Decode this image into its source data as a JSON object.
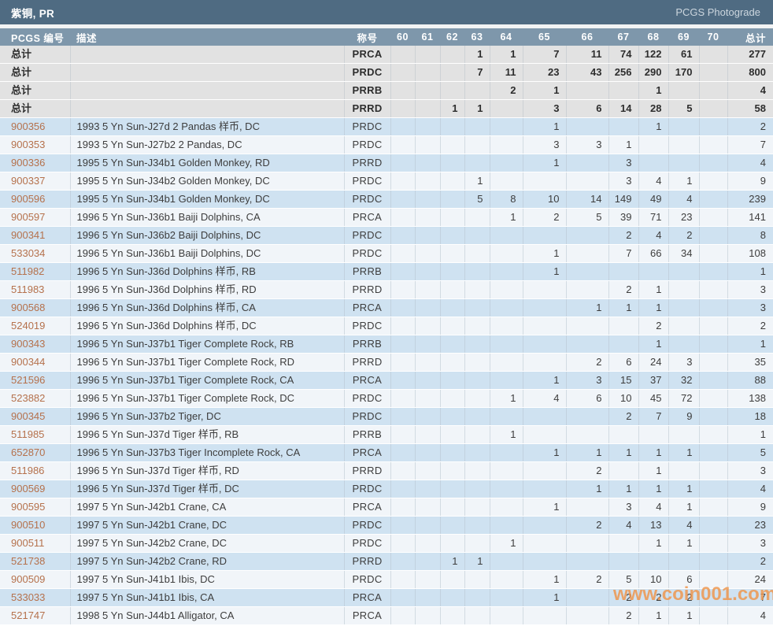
{
  "title_bar": {
    "title": "紫铜, PR",
    "right_label": "PCGS Photograde"
  },
  "columns": [
    "PCGS 编号",
    "描述",
    "称号",
    "60",
    "61",
    "62",
    "63",
    "64",
    "65",
    "66",
    "67",
    "68",
    "69",
    "70",
    "总计"
  ],
  "summary_label": "总计",
  "summary_rows": [
    {
      "designation": "PRCA",
      "grades": [
        "",
        "",
        "",
        "1",
        "1",
        "7",
        "11",
        "74",
        "122",
        "61",
        ""
      ],
      "total": "277"
    },
    {
      "designation": "PRDC",
      "grades": [
        "",
        "",
        "",
        "7",
        "11",
        "23",
        "43",
        "256",
        "290",
        "170",
        ""
      ],
      "total": "800"
    },
    {
      "designation": "PRRB",
      "grades": [
        "",
        "",
        "",
        "",
        "2",
        "1",
        "",
        "",
        "1",
        "",
        ""
      ],
      "total": "4"
    },
    {
      "designation": "PRRD",
      "grades": [
        "",
        "",
        "1",
        "1",
        "",
        "3",
        "6",
        "14",
        "28",
        "5",
        ""
      ],
      "total": "58"
    }
  ],
  "coin_rows": [
    {
      "number": "900356",
      "description": "1993 5 Yn Sun-J27d 2 Pandas 样币, DC",
      "designation": "PRDC",
      "grades": [
        "",
        "",
        "",
        "",
        "",
        "1",
        "",
        "",
        "1",
        "",
        ""
      ],
      "total": "2"
    },
    {
      "number": "900353",
      "description": "1993 5 Yn Sun-J27b2 2 Pandas, DC",
      "designation": "PRDC",
      "grades": [
        "",
        "",
        "",
        "",
        "",
        "3",
        "3",
        "1",
        "",
        "",
        ""
      ],
      "total": "7"
    },
    {
      "number": "900336",
      "description": "1995 5 Yn Sun-J34b1 Golden Monkey, RD",
      "designation": "PRRD",
      "grades": [
        "",
        "",
        "",
        "",
        "",
        "1",
        "",
        "3",
        "",
        "",
        ""
      ],
      "total": "4"
    },
    {
      "number": "900337",
      "description": "1995 5 Yn Sun-J34b2 Golden Monkey, DC",
      "designation": "PRDC",
      "grades": [
        "",
        "",
        "",
        "1",
        "",
        "",
        "",
        "3",
        "4",
        "1",
        ""
      ],
      "total": "9"
    },
    {
      "number": "900596",
      "description": "1995 5 Yn Sun-J34b1 Golden Monkey, DC",
      "designation": "PRDC",
      "grades": [
        "",
        "",
        "",
        "5",
        "8",
        "10",
        "14",
        "149",
        "49",
        "4",
        ""
      ],
      "total": "239"
    },
    {
      "number": "900597",
      "description": "1996 5 Yn Sun-J36b1 Baiji Dolphins, CA",
      "designation": "PRCA",
      "grades": [
        "",
        "",
        "",
        "",
        "1",
        "2",
        "5",
        "39",
        "71",
        "23",
        ""
      ],
      "total": "141"
    },
    {
      "number": "900341",
      "description": "1996 5 Yn Sun-J36b2 Baiji Dolphins, DC",
      "designation": "PRDC",
      "grades": [
        "",
        "",
        "",
        "",
        "",
        "",
        "",
        "2",
        "4",
        "2",
        ""
      ],
      "total": "8"
    },
    {
      "number": "533034",
      "description": "1996 5 Yn Sun-J36b1 Baiji Dolphins, DC",
      "designation": "PRDC",
      "grades": [
        "",
        "",
        "",
        "",
        "",
        "1",
        "",
        "7",
        "66",
        "34",
        ""
      ],
      "total": "108"
    },
    {
      "number": "511982",
      "description": "1996 5 Yn Sun-J36d Dolphins 样币, RB",
      "designation": "PRRB",
      "grades": [
        "",
        "",
        "",
        "",
        "",
        "1",
        "",
        "",
        "",
        "",
        ""
      ],
      "total": "1"
    },
    {
      "number": "511983",
      "description": "1996 5 Yn Sun-J36d Dolphins 样币, RD",
      "designation": "PRRD",
      "grades": [
        "",
        "",
        "",
        "",
        "",
        "",
        "",
        "2",
        "1",
        "",
        ""
      ],
      "total": "3"
    },
    {
      "number": "900568",
      "description": "1996 5 Yn Sun-J36d Dolphins 样币, CA",
      "designation": "PRCA",
      "grades": [
        "",
        "",
        "",
        "",
        "",
        "",
        "1",
        "1",
        "1",
        "",
        ""
      ],
      "total": "3"
    },
    {
      "number": "524019",
      "description": "1996 5 Yn Sun-J36d Dolphins 样币, DC",
      "designation": "PRDC",
      "grades": [
        "",
        "",
        "",
        "",
        "",
        "",
        "",
        "",
        "2",
        "",
        ""
      ],
      "total": "2"
    },
    {
      "number": "900343",
      "description": "1996 5 Yn Sun-J37b1 Tiger Complete Rock, RB",
      "designation": "PRRB",
      "grades": [
        "",
        "",
        "",
        "",
        "",
        "",
        "",
        "",
        "1",
        "",
        ""
      ],
      "total": "1"
    },
    {
      "number": "900344",
      "description": "1996 5 Yn Sun-J37b1 Tiger Complete Rock, RD",
      "designation": "PRRD",
      "grades": [
        "",
        "",
        "",
        "",
        "",
        "",
        "2",
        "6",
        "24",
        "3",
        ""
      ],
      "total": "35"
    },
    {
      "number": "521596",
      "description": "1996 5 Yn Sun-J37b1 Tiger Complete Rock, CA",
      "designation": "PRCA",
      "grades": [
        "",
        "",
        "",
        "",
        "",
        "1",
        "3",
        "15",
        "37",
        "32",
        ""
      ],
      "total": "88"
    },
    {
      "number": "523882",
      "description": "1996 5 Yn Sun-J37b1 Tiger Complete Rock, DC",
      "designation": "PRDC",
      "grades": [
        "",
        "",
        "",
        "",
        "1",
        "4",
        "6",
        "10",
        "45",
        "72",
        ""
      ],
      "total": "138"
    },
    {
      "number": "900345",
      "description": "1996 5 Yn Sun-J37b2 Tiger, DC",
      "designation": "PRDC",
      "grades": [
        "",
        "",
        "",
        "",
        "",
        "",
        "",
        "2",
        "7",
        "9",
        ""
      ],
      "total": "18"
    },
    {
      "number": "511985",
      "description": "1996 5 Yn Sun-J37d Tiger 样币, RB",
      "designation": "PRRB",
      "grades": [
        "",
        "",
        "",
        "",
        "1",
        "",
        "",
        "",
        "",
        "",
        ""
      ],
      "total": "1"
    },
    {
      "number": "652870",
      "description": "1996 5 Yn Sun-J37b3 Tiger Incomplete Rock, CA",
      "designation": "PRCA",
      "grades": [
        "",
        "",
        "",
        "",
        "",
        "1",
        "1",
        "1",
        "1",
        "1",
        ""
      ],
      "total": "5"
    },
    {
      "number": "511986",
      "description": "1996 5 Yn Sun-J37d Tiger 样币, RD",
      "designation": "PRRD",
      "grades": [
        "",
        "",
        "",
        "",
        "",
        "",
        "2",
        "",
        "1",
        "",
        ""
      ],
      "total": "3"
    },
    {
      "number": "900569",
      "description": "1996 5 Yn Sun-J37d Tiger 样币, DC",
      "designation": "PRDC",
      "grades": [
        "",
        "",
        "",
        "",
        "",
        "",
        "1",
        "1",
        "1",
        "1",
        ""
      ],
      "total": "4"
    },
    {
      "number": "900595",
      "description": "1997 5 Yn Sun-J42b1 Crane, CA",
      "designation": "PRCA",
      "grades": [
        "",
        "",
        "",
        "",
        "",
        "1",
        "",
        "3",
        "4",
        "1",
        ""
      ],
      "total": "9"
    },
    {
      "number": "900510",
      "description": "1997 5 Yn Sun-J42b1 Crane, DC",
      "designation": "PRDC",
      "grades": [
        "",
        "",
        "",
        "",
        "",
        "",
        "2",
        "4",
        "13",
        "4",
        ""
      ],
      "total": "23"
    },
    {
      "number": "900511",
      "description": "1997 5 Yn Sun-J42b2 Crane, DC",
      "designation": "PRDC",
      "grades": [
        "",
        "",
        "",
        "",
        "1",
        "",
        "",
        "",
        "1",
        "1",
        ""
      ],
      "total": "3"
    },
    {
      "number": "521738",
      "description": "1997 5 Yn Sun-J42b2 Crane, RD",
      "designation": "PRRD",
      "grades": [
        "",
        "",
        "1",
        "1",
        "",
        "",
        "",
        "",
        "",
        "",
        ""
      ],
      "total": "2"
    },
    {
      "number": "900509",
      "description": "1997 5 Yn Sun-J41b1 Ibis, DC",
      "designation": "PRDC",
      "grades": [
        "",
        "",
        "",
        "",
        "",
        "1",
        "2",
        "5",
        "10",
        "6",
        ""
      ],
      "total": "24"
    },
    {
      "number": "533033",
      "description": "1997 5 Yn Sun-J41b1 Ibis, CA",
      "designation": "PRCA",
      "grades": [
        "",
        "",
        "",
        "",
        "",
        "1",
        "",
        "2",
        "2",
        "2",
        ""
      ],
      "total": "7"
    },
    {
      "number": "521747",
      "description": "1998 5 Yn Sun-J44b1 Alligator, CA",
      "designation": "PRCA",
      "grades": [
        "",
        "",
        "",
        "",
        "",
        "",
        "",
        "2",
        "1",
        "1",
        ""
      ],
      "total": "4"
    }
  ],
  "watermark": "www.coin001.com",
  "colors": {
    "title_bar_bg": "#4f6b82",
    "header_bg": "#7e97ab",
    "summary_row_bg": "#e2e2e2",
    "row_blue": "#cfe2f1",
    "row_light": "#f1f5f9",
    "number_link": "#b5714c",
    "watermark_orange": "#ef9449"
  }
}
